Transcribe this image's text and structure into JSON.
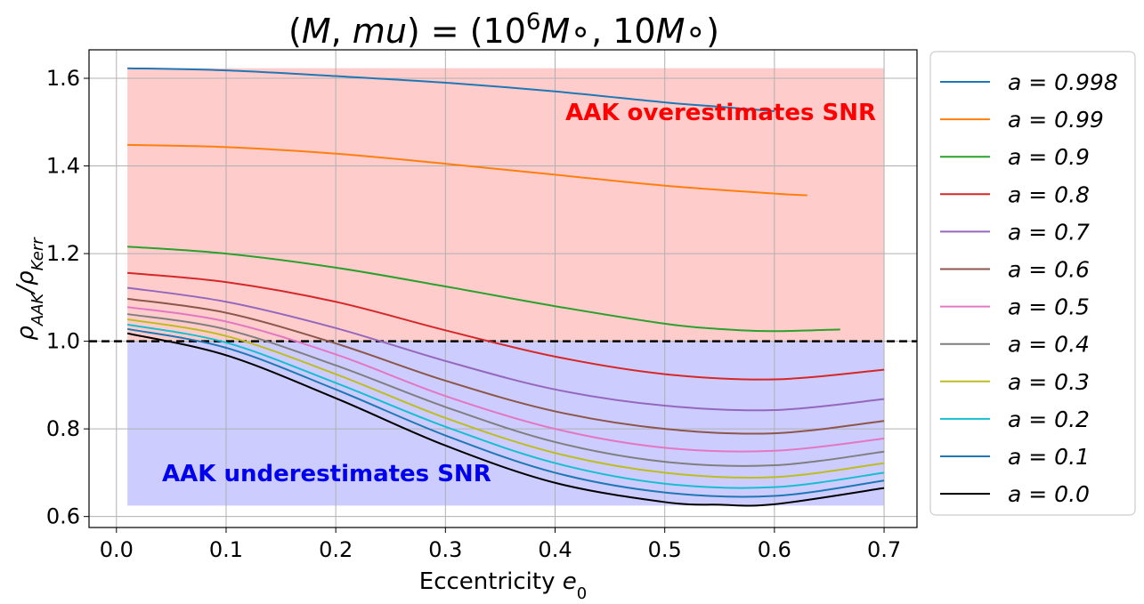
{
  "chart_data": {
    "type": "line",
    "title": "(M, mu) = (10^6 M∘, 10 M∘)",
    "xlabel": "Eccentricity e_0",
    "ylabel": "ρ_AAK/ρ_Kerr",
    "xlim": [
      -0.025,
      0.73
    ],
    "ylim": [
      0.575,
      1.665
    ],
    "xticks": [
      "0.0",
      "0.1",
      "0.2",
      "0.3",
      "0.4",
      "0.5",
      "0.6",
      "0.7"
    ],
    "yticks": [
      "0.6",
      "0.8",
      "1.0",
      "1.2",
      "1.4",
      "1.6"
    ],
    "grid": true,
    "legend_position": "outside-right",
    "reference_line": {
      "y": 1.0,
      "style": "dashed",
      "color": "#000000"
    },
    "regions": [
      {
        "label": "AAK overestimates SNR",
        "x": [
          0.01,
          0.7
        ],
        "y": [
          1.0,
          1.623
        ],
        "fill": "#ff9999",
        "text_color": "#ff0000"
      },
      {
        "label": "AAK underestimates SNR",
        "x": [
          0.01,
          0.7
        ],
        "y": [
          0.625,
          1.0
        ],
        "fill": "#9999ff",
        "text_color": "#0000ee"
      }
    ],
    "series": [
      {
        "name": "a = 0.998",
        "color": "#1f77b4",
        "x": [
          0.01,
          0.1,
          0.2,
          0.3,
          0.4,
          0.5,
          0.55,
          0.6
        ],
        "y": [
          1.623,
          1.618,
          1.605,
          1.59,
          1.57,
          1.545,
          1.535,
          1.525
        ]
      },
      {
        "name": "a = 0.99",
        "color": "#ff7f0e",
        "x": [
          0.01,
          0.1,
          0.2,
          0.3,
          0.4,
          0.5,
          0.6,
          0.63
        ],
        "y": [
          1.448,
          1.443,
          1.428,
          1.405,
          1.38,
          1.355,
          1.337,
          1.333
        ]
      },
      {
        "name": "a = 0.9",
        "color": "#2ca02c",
        "x": [
          0.01,
          0.1,
          0.2,
          0.3,
          0.4,
          0.5,
          0.55,
          0.6,
          0.66
        ],
        "y": [
          1.216,
          1.2,
          1.168,
          1.125,
          1.08,
          1.04,
          1.028,
          1.023,
          1.027
        ]
      },
      {
        "name": "a = 0.8",
        "color": "#d62728",
        "x": [
          0.01,
          0.1,
          0.2,
          0.3,
          0.4,
          0.5,
          0.6,
          0.7
        ],
        "y": [
          1.156,
          1.135,
          1.09,
          1.025,
          0.965,
          0.925,
          0.913,
          0.935
        ]
      },
      {
        "name": "a = 0.7",
        "color": "#9467bd",
        "x": [
          0.01,
          0.1,
          0.2,
          0.3,
          0.4,
          0.5,
          0.6,
          0.7
        ],
        "y": [
          1.122,
          1.09,
          1.03,
          0.955,
          0.89,
          0.853,
          0.843,
          0.868
        ]
      },
      {
        "name": "a = 0.6",
        "color": "#8c564b",
        "x": [
          0.01,
          0.1,
          0.2,
          0.3,
          0.4,
          0.5,
          0.6,
          0.7
        ],
        "y": [
          1.097,
          1.065,
          0.995,
          0.91,
          0.84,
          0.8,
          0.79,
          0.818
        ]
      },
      {
        "name": "a = 0.5",
        "color": "#e377c2",
        "x": [
          0.01,
          0.1,
          0.2,
          0.3,
          0.4,
          0.5,
          0.6,
          0.7
        ],
        "y": [
          1.078,
          1.045,
          0.97,
          0.875,
          0.8,
          0.757,
          0.75,
          0.778
        ]
      },
      {
        "name": "a = 0.4",
        "color": "#7f7f7f",
        "x": [
          0.01,
          0.1,
          0.2,
          0.3,
          0.4,
          0.5,
          0.6,
          0.7
        ],
        "y": [
          1.062,
          1.027,
          0.945,
          0.85,
          0.77,
          0.725,
          0.717,
          0.748
        ]
      },
      {
        "name": "a = 0.3",
        "color": "#bcbd22",
        "x": [
          0.01,
          0.1,
          0.2,
          0.3,
          0.4,
          0.5,
          0.6,
          0.7
        ],
        "y": [
          1.05,
          1.012,
          0.925,
          0.825,
          0.745,
          0.7,
          0.69,
          0.722
        ]
      },
      {
        "name": "a = 0.2",
        "color": "#17becf",
        "x": [
          0.01,
          0.1,
          0.2,
          0.3,
          0.4,
          0.5,
          0.6,
          0.7
        ],
        "y": [
          1.038,
          0.997,
          0.905,
          0.805,
          0.722,
          0.675,
          0.667,
          0.7
        ]
      },
      {
        "name": "a = 0.1",
        "color": "#1f77b4",
        "x": [
          0.01,
          0.1,
          0.2,
          0.3,
          0.4,
          0.5,
          0.6,
          0.7
        ],
        "y": [
          1.028,
          0.985,
          0.89,
          0.785,
          0.7,
          0.655,
          0.647,
          0.682
        ]
      },
      {
        "name": "a = 0.0",
        "color": "#000000",
        "x": [
          0.01,
          0.1,
          0.2,
          0.3,
          0.4,
          0.5,
          0.55,
          0.6,
          0.7
        ],
        "y": [
          1.018,
          0.968,
          0.87,
          0.762,
          0.677,
          0.633,
          0.627,
          0.628,
          0.665
        ]
      }
    ]
  }
}
